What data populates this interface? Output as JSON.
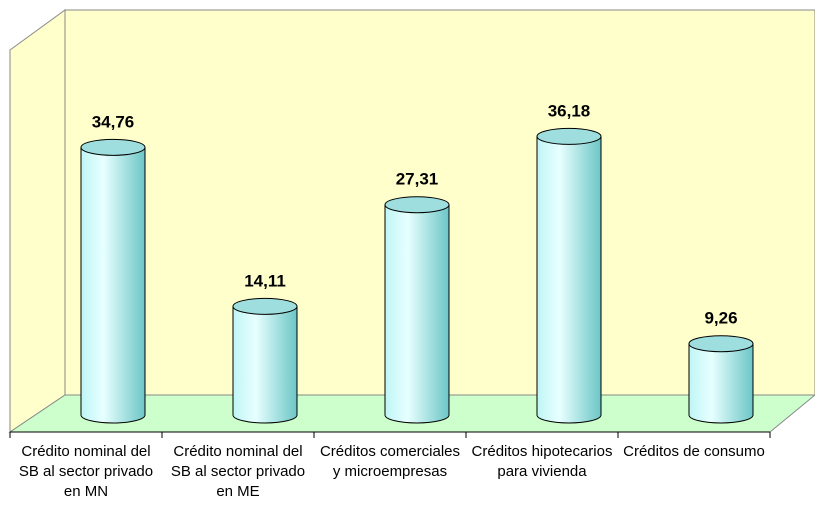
{
  "chart_data": {
    "type": "bar",
    "categories": [
      "Crédito nominal del SB al sector privado en MN",
      "Crédito nominal del SB al sector privado en ME",
      "Créditos comerciales y microempresas",
      "Créditos hipotecarios para vivienda",
      "Créditos de consumo"
    ],
    "values": [
      34.76,
      14.11,
      27.31,
      36.18,
      9.26
    ],
    "value_labels": [
      "34,76",
      "14,11",
      "27,31",
      "36,18",
      "9,26"
    ],
    "color": "#ccffff"
  }
}
